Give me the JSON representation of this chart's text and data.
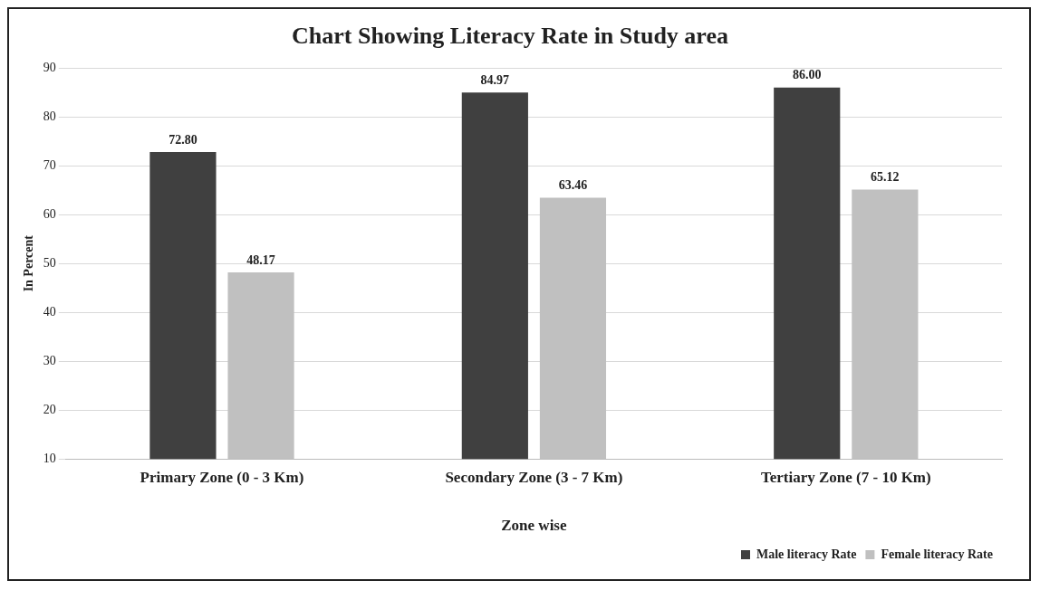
{
  "chart_data": {
    "type": "bar",
    "title": "Chart Showing Literacy Rate in Study area",
    "xlabel": "Zone wise",
    "ylabel": "In Percent",
    "categories": [
      "Primary Zone (0 - 3 Km)",
      "Secondary Zone (3 - 7 Km)",
      "Tertiary Zone (7 - 10 Km)"
    ],
    "series": [
      {
        "name": "Male literacy Rate",
        "color": "#404040",
        "values": [
          72.8,
          84.97,
          86.0
        ],
        "value_labels": [
          "72.80",
          "84.97",
          "86.00"
        ]
      },
      {
        "name": "Female literacy Rate",
        "color": "#c0c0c0",
        "values": [
          48.17,
          63.46,
          65.12
        ],
        "value_labels": [
          "48.17",
          "63.46",
          "65.12"
        ]
      }
    ],
    "ylim": [
      10,
      90
    ],
    "yticks": [
      10,
      20,
      30,
      40,
      50,
      60,
      70,
      80,
      90
    ],
    "grid": "y",
    "legend": "bottom right"
  }
}
